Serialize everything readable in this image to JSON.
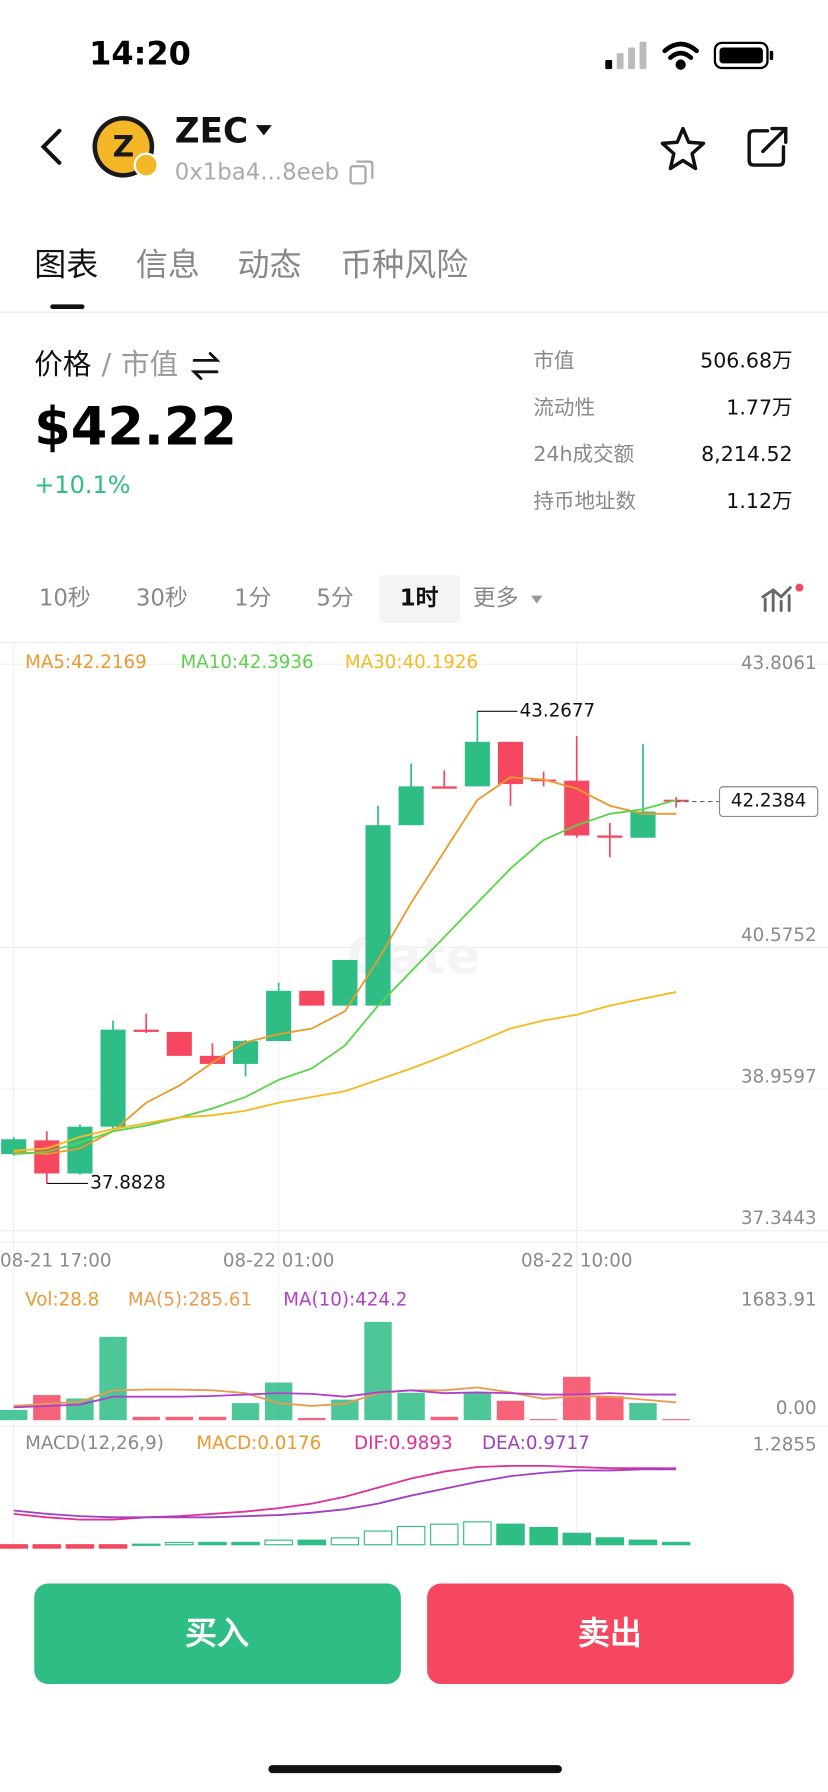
{
  "status_bar": {
    "time": "14:20"
  },
  "header": {
    "symbol": "ZEC",
    "address": "0x1ba4...8eeb"
  },
  "tabs": [
    "图表",
    "信息",
    "动态",
    "币种风险"
  ],
  "price_section": {
    "label_price": "价格",
    "separator": "/",
    "label_cap": "市值",
    "price": "$42.22",
    "change": "+10.1%"
  },
  "stats": [
    {
      "label": "市值",
      "value": "506.68万"
    },
    {
      "label": "流动性",
      "value": "1.77万"
    },
    {
      "label": "24h成交额",
      "value": "8,214.52"
    },
    {
      "label": "持币地址数",
      "value": "1.12万"
    }
  ],
  "timeframes": [
    "10秒",
    "30秒",
    "1分",
    "5分",
    "1时",
    "更多"
  ],
  "chart_data": {
    "type": "candlestick",
    "categories": [
      "08-21 17:00",
      null,
      null,
      null,
      null,
      null,
      null,
      null,
      "08-22 01:00",
      null,
      null,
      null,
      null,
      null,
      null,
      null,
      null,
      "08-22 10:00",
      null,
      null,
      null
    ],
    "open": [
      38.217,
      38.374,
      37.996,
      38.53,
      39.637,
      39.611,
      39.338,
      39.246,
      39.507,
      40.08,
      39.911,
      39.911,
      41.969,
      42.412,
      42.412,
      42.92,
      42.49,
      42.477,
      41.852,
      41.826,
      42.26
    ],
    "high": [
      38.412,
      38.478,
      38.556,
      39.741,
      39.82,
      39.611,
      39.481,
      39.52,
      40.171,
      40.08,
      40.432,
      42.191,
      42.673,
      42.595,
      43.2677,
      42.92,
      42.581,
      42.985,
      41.995,
      42.894,
      42.29
    ],
    "low": [
      38.2,
      37.8828,
      37.983,
      38.478,
      39.598,
      39.338,
      39.246,
      39.103,
      39.507,
      39.911,
      39.911,
      39.911,
      41.969,
      42.386,
      42.412,
      42.191,
      42.412,
      41.826,
      41.604,
      41.826,
      42.17
    ],
    "close": [
      38.387,
      37.996,
      38.53,
      39.637,
      39.611,
      39.338,
      39.246,
      39.507,
      40.08,
      39.911,
      40.432,
      41.969,
      42.412,
      42.386,
      42.92,
      42.438,
      42.477,
      41.852,
      41.826,
      42.125,
      42.2384
    ],
    "up_color": "#2ebd85",
    "down_color": "#f5475f",
    "series": [
      {
        "name": "MA5:42.2169",
        "color": "#ec9a2e",
        "values": [
          38.243,
          38.217,
          38.282,
          38.478,
          38.803,
          38.999,
          39.26,
          39.494,
          39.585,
          39.65,
          39.846,
          40.432,
          41.084,
          41.67,
          42.256,
          42.516,
          42.49,
          42.386,
          42.191,
          42.099,
          42.099
        ]
      },
      {
        "name": "MA10:42.3936",
        "color": "#5bd44c",
        "values": [
          38.217,
          38.243,
          38.348,
          38.478,
          38.543,
          38.634,
          38.738,
          38.869,
          39.064,
          39.194,
          39.455,
          39.911,
          40.302,
          40.692,
          41.084,
          41.474,
          41.8,
          41.969,
          42.099,
          42.151,
          42.256
        ]
      },
      {
        "name": "MA30:40.1926",
        "color": "#f2bb1f",
        "values": [
          38.256,
          38.282,
          38.413,
          38.503,
          38.569,
          38.634,
          38.66,
          38.712,
          38.803,
          38.869,
          38.934,
          39.064,
          39.194,
          39.338,
          39.494,
          39.65,
          39.741,
          39.807,
          39.911,
          39.989,
          40.067
        ]
      }
    ],
    "ylim": [
      37.3443,
      43.8061
    ],
    "yticks": [
      43.8061,
      40.5752,
      38.9597,
      37.3443
    ],
    "grid": true
  },
  "volume": {
    "type": "bar",
    "label": "Vol:28.8",
    "values": [
      144,
      353,
      305,
      1171,
      48,
      48,
      48,
      241,
      529,
      32,
      289,
      1379,
      385,
      48,
      385,
      273,
      16,
      609,
      337,
      241,
      16
    ],
    "series": [
      {
        "name": "MA(5):285.61",
        "color": "#ec9a4e",
        "values": [
          200,
          230,
          260,
          420,
          430,
          430,
          420,
          380,
          240,
          200,
          230,
          380,
          420,
          420,
          460,
          390,
          300,
          340,
          330,
          290,
          250
        ]
      },
      {
        "name": "MA(10):424.2",
        "color": "#b23fcc",
        "values": [
          180,
          200,
          220,
          330,
          330,
          330,
          340,
          360,
          380,
          370,
          330,
          390,
          420,
          380,
          390,
          380,
          360,
          360,
          380,
          360,
          360
        ]
      }
    ],
    "ylim": [
      0,
      1683.91
    ],
    "yticks": [
      {
        "value": 0,
        "label": "0.00"
      },
      1683.91
    ]
  },
  "macd": {
    "type": "macd",
    "label": "MACD(12,26,9)",
    "macd_label": "MACD:0.0176",
    "values": [
      -0.044,
      -0.044,
      -0.044,
      -0.044,
      0.007,
      0.03,
      0.03,
      0.03,
      0.059,
      0.059,
      0.089,
      0.177,
      0.236,
      0.266,
      0.296,
      0.266,
      0.222,
      0.148,
      0.089,
      0.059,
      0.03
    ],
    "series": [
      {
        "name": "DIF:0.9893",
        "color": "#e0309a",
        "values": [
          0.399,
          0.355,
          0.325,
          0.325,
          0.355,
          0.37,
          0.399,
          0.429,
          0.473,
          0.532,
          0.621,
          0.739,
          0.857,
          0.946,
          1.005,
          1.02,
          1.02,
          1.005,
          0.99,
          0.99,
          0.989
        ]
      },
      {
        "name": "DEA:0.9717",
        "color": "#a23ec4",
        "values": [
          0.443,
          0.399,
          0.37,
          0.355,
          0.355,
          0.355,
          0.355,
          0.37,
          0.384,
          0.414,
          0.458,
          0.532,
          0.636,
          0.724,
          0.813,
          0.887,
          0.931,
          0.961,
          0.961,
          0.975,
          0.975
        ]
      }
    ],
    "ylim": [
      -0.1,
      1.2855
    ],
    "yticks": [
      1.2855
    ]
  },
  "buttons": {
    "buy": "买入",
    "sell": "卖出"
  }
}
